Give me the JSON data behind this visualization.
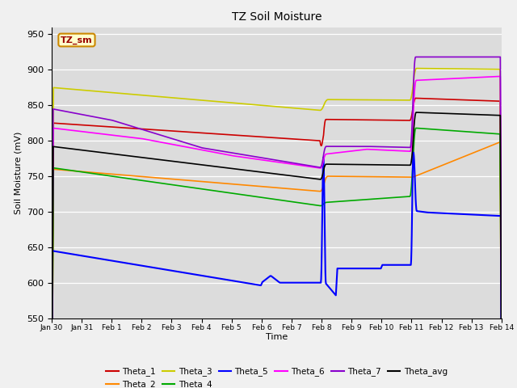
{
  "title": "TZ Soil Moisture",
  "xlabel": "Time",
  "ylabel": "Soil Moisture (mV)",
  "ylim": [
    550,
    960
  ],
  "yticks": [
    550,
    600,
    650,
    700,
    750,
    800,
    850,
    900,
    950
  ],
  "bg_color": "#dcdcdc",
  "fig_color": "#f0f0f0",
  "legend_label": "TZ_sm",
  "series": {
    "Theta_1": {
      "color": "#cc0000",
      "lw": 1.2
    },
    "Theta_2": {
      "color": "#ff8800",
      "lw": 1.2
    },
    "Theta_3": {
      "color": "#cccc00",
      "lw": 1.2
    },
    "Theta_4": {
      "color": "#00aa00",
      "lw": 1.2
    },
    "Theta_5": {
      "color": "#0000ff",
      "lw": 1.5
    },
    "Theta_6": {
      "color": "#ff00ff",
      "lw": 1.2
    },
    "Theta_7": {
      "color": "#8800cc",
      "lw": 1.2
    },
    "Theta_avg": {
      "color": "#000000",
      "lw": 1.2
    }
  },
  "x_start": 0,
  "x_end": 15,
  "xtick_labels": [
    "Jan 30",
    "Jan 31",
    "Feb 1",
    "Feb 2",
    "Feb 3",
    "Feb 4",
    "Feb 5",
    "Feb 6",
    "Feb 7",
    "Feb 8",
    "Feb 9",
    "Feb 10",
    "Feb 11",
    "Feb 12",
    "Feb 13",
    "Feb 14"
  ],
  "xtick_positions": [
    0,
    1,
    2,
    3,
    4,
    5,
    6,
    7,
    8,
    9,
    10,
    11,
    12,
    13,
    14,
    15
  ]
}
